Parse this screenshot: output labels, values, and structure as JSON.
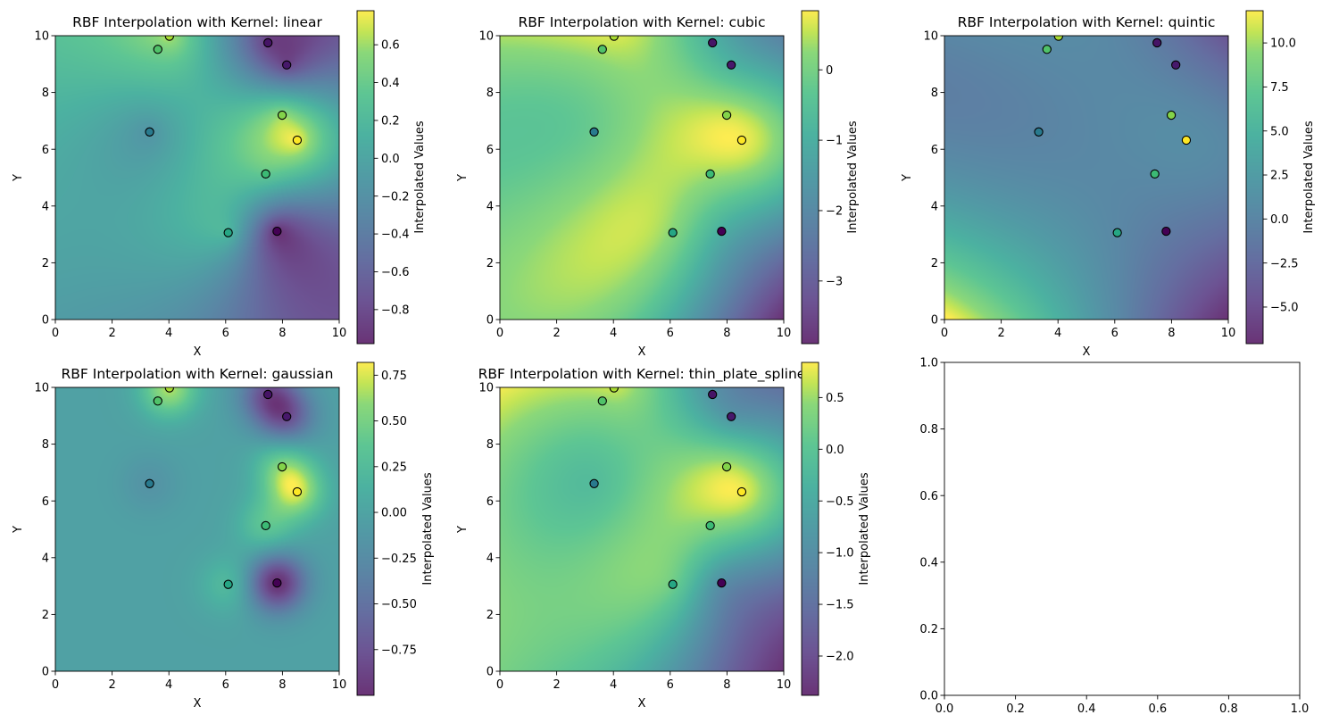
{
  "sample_points": {
    "x": [
      4.02,
      3.61,
      7.49,
      8.15,
      7.99,
      8.52,
      3.32,
      7.41,
      6.09,
      7.81
    ],
    "y": [
      9.98,
      9.52,
      9.75,
      8.97,
      7.2,
      6.32,
      6.61,
      5.13,
      3.06,
      3.11
    ],
    "values": [
      0.66,
      0.45,
      -0.89,
      -0.86,
      0.6,
      0.79,
      -0.17,
      0.37,
      0.19,
      -1.0
    ],
    "marker_edge_color": "#000000"
  },
  "chart_data": [
    {
      "type": "heatmap",
      "title": "RBF Interpolation with Kernel: linear",
      "kernel": "linear",
      "xlabel": "X",
      "ylabel": "Y",
      "xlim": [
        0,
        10
      ],
      "ylim": [
        0,
        10
      ],
      "xtick_values": [
        0,
        2,
        4,
        6,
        8,
        10
      ],
      "xtick_labels": [
        "0",
        "2",
        "4",
        "6",
        "8",
        "10"
      ],
      "ytick_values": [
        0,
        2,
        4,
        6,
        8,
        10
      ],
      "ytick_labels": [
        "0",
        "2",
        "4",
        "6",
        "8",
        "10"
      ],
      "colormap": "viridis",
      "alpha": 0.8,
      "colorbar": {
        "label": "Interpolated Values",
        "range": [
          -0.98,
          0.78
        ],
        "tick_values": [
          0.6,
          0.4,
          0.2,
          0.0,
          -0.2,
          -0.4,
          -0.6,
          -0.8
        ],
        "tick_labels": [
          "0.6",
          "0.4",
          "0.2",
          "0.0",
          "−0.2",
          "−0.4",
          "−0.6",
          "−0.8"
        ]
      }
    },
    {
      "type": "heatmap",
      "title": "RBF Interpolation with Kernel: cubic",
      "kernel": "cubic",
      "xlabel": "X",
      "ylabel": "Y",
      "xlim": [
        0,
        10
      ],
      "ylim": [
        0,
        10
      ],
      "xtick_values": [
        0,
        2,
        4,
        6,
        8,
        10
      ],
      "xtick_labels": [
        "0",
        "2",
        "4",
        "6",
        "8",
        "10"
      ],
      "ytick_values": [
        0,
        2,
        4,
        6,
        8,
        10
      ],
      "ytick_labels": [
        "0",
        "2",
        "4",
        "6",
        "8",
        "10"
      ],
      "colormap": "viridis",
      "alpha": 0.8,
      "colorbar": {
        "label": "Interpolated Values",
        "range": [
          -3.89,
          0.84
        ],
        "tick_values": [
          0,
          -1,
          -2,
          -3
        ],
        "tick_labels": [
          "0",
          "−1",
          "−2",
          "−3"
        ]
      }
    },
    {
      "type": "heatmap",
      "title": "RBF Interpolation with Kernel: quintic",
      "kernel": "quintic",
      "xlabel": "X",
      "ylabel": "Y",
      "xlim": [
        0,
        10
      ],
      "ylim": [
        0,
        10
      ],
      "xtick_values": [
        0,
        2,
        4,
        6,
        8,
        10
      ],
      "xtick_labels": [
        "0",
        "2",
        "4",
        "6",
        "8",
        "10"
      ],
      "ytick_values": [
        0,
        2,
        4,
        6,
        8,
        10
      ],
      "ytick_labels": [
        "0",
        "2",
        "4",
        "6",
        "8",
        "10"
      ],
      "colormap": "viridis",
      "alpha": 0.8,
      "colorbar": {
        "label": "Interpolated Values",
        "range": [
          -7.08,
          11.83
        ],
        "tick_values": [
          10.0,
          7.5,
          5.0,
          2.5,
          0.0,
          -2.5,
          -5.0
        ],
        "tick_labels": [
          "10.0",
          "7.5",
          "5.0",
          "2.5",
          "0.0",
          "−2.5",
          "−5.0"
        ]
      }
    },
    {
      "type": "heatmap",
      "title": "RBF Interpolation with Kernel: gaussian",
      "kernel": "gaussian",
      "xlabel": "X",
      "ylabel": "Y",
      "xlim": [
        0,
        10
      ],
      "ylim": [
        0,
        10
      ],
      "xtick_values": [
        0,
        2,
        4,
        6,
        8,
        10
      ],
      "xtick_labels": [
        "0",
        "2",
        "4",
        "6",
        "8",
        "10"
      ],
      "ytick_values": [
        0,
        2,
        4,
        6,
        8,
        10
      ],
      "ytick_labels": [
        "0",
        "2",
        "4",
        "6",
        "8",
        "10"
      ],
      "colormap": "viridis",
      "alpha": 0.8,
      "colorbar": {
        "label": "Interpolated Values",
        "range": [
          -1.0,
          0.82
        ],
        "tick_values": [
          0.75,
          0.5,
          0.25,
          0.0,
          -0.25,
          -0.5,
          -0.75
        ],
        "tick_labels": [
          "0.75",
          "0.50",
          "0.25",
          "0.00",
          "−0.25",
          "−0.50",
          "−0.75"
        ]
      }
    },
    {
      "type": "heatmap",
      "title": "RBF Interpolation with Kernel: thin_plate_spline",
      "kernel": "thin_plate_spline",
      "xlabel": "X",
      "ylabel": "Y",
      "xlim": [
        0,
        10
      ],
      "ylim": [
        0,
        10
      ],
      "xtick_values": [
        0,
        2,
        4,
        6,
        8,
        10
      ],
      "xtick_labels": [
        "0",
        "2",
        "4",
        "6",
        "8",
        "10"
      ],
      "ytick_values": [
        0,
        2,
        4,
        6,
        8,
        10
      ],
      "ytick_labels": [
        "0",
        "2",
        "4",
        "6",
        "8",
        "10"
      ],
      "colormap": "viridis",
      "alpha": 0.8,
      "colorbar": {
        "label": "Interpolated Values",
        "range": [
          -2.38,
          0.84
        ],
        "tick_values": [
          0.5,
          0.0,
          -0.5,
          -1.0,
          -1.5,
          -2.0
        ],
        "tick_labels": [
          "0.5",
          "0.0",
          "−0.5",
          "−1.0",
          "−1.5",
          "−2.0"
        ]
      }
    },
    {
      "type": "empty",
      "xlim": [
        0,
        1
      ],
      "ylim": [
        0,
        1
      ],
      "xtick_values": [
        0,
        0.2,
        0.4,
        0.6,
        0.8,
        1.0
      ],
      "xtick_labels": [
        "0.0",
        "0.2",
        "0.4",
        "0.6",
        "0.8",
        "1.0"
      ],
      "ytick_values": [
        0,
        0.2,
        0.4,
        0.6,
        0.8,
        1.0
      ],
      "ytick_labels": [
        "0.0",
        "0.2",
        "0.4",
        "0.6",
        "0.8",
        "1.0"
      ]
    }
  ]
}
